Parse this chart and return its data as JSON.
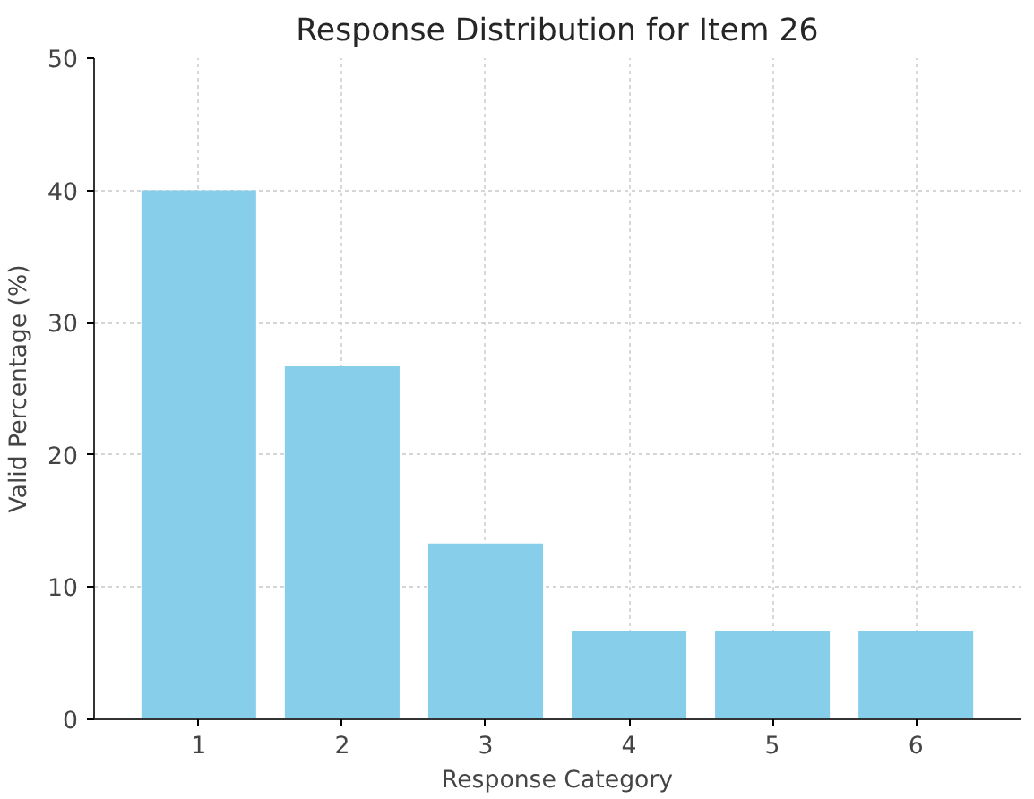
{
  "chart_data": {
    "type": "bar",
    "title": "Response Distribution for Item 26",
    "xlabel": "Response Category",
    "ylabel": "Valid Percentage (%)",
    "categories": [
      "1",
      "2",
      "3",
      "4",
      "5",
      "6"
    ],
    "values": [
      40,
      26.7,
      13.3,
      6.7,
      6.7,
      6.7
    ],
    "color": "#87ceeb",
    "ylim": [
      0,
      50
    ],
    "yticks": [
      0,
      10,
      20,
      30,
      40,
      50
    ],
    "grid": true
  }
}
